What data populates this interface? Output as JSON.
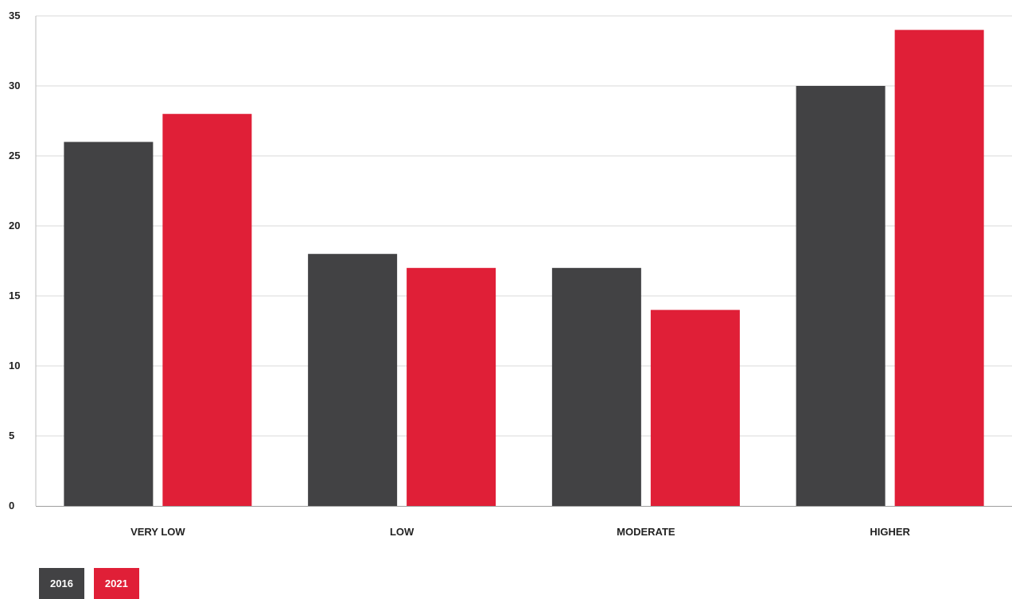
{
  "chart_data": {
    "type": "bar",
    "title": "",
    "xlabel": "",
    "ylabel": "",
    "categories": [
      "VERY LOW",
      "LOW",
      "MODERATE",
      "HIGHER"
    ],
    "series": [
      {
        "name": "2016",
        "color": "#424244",
        "values": [
          26,
          18,
          17,
          30
        ]
      },
      {
        "name": "2021",
        "color": "#e01f37",
        "values": [
          28,
          17,
          14,
          34
        ]
      }
    ],
    "ylim": [
      0,
      35
    ],
    "yticks": [
      0,
      5,
      10,
      15,
      20,
      25,
      30,
      35
    ],
    "grid": true,
    "legend_position": "bottom-left"
  }
}
